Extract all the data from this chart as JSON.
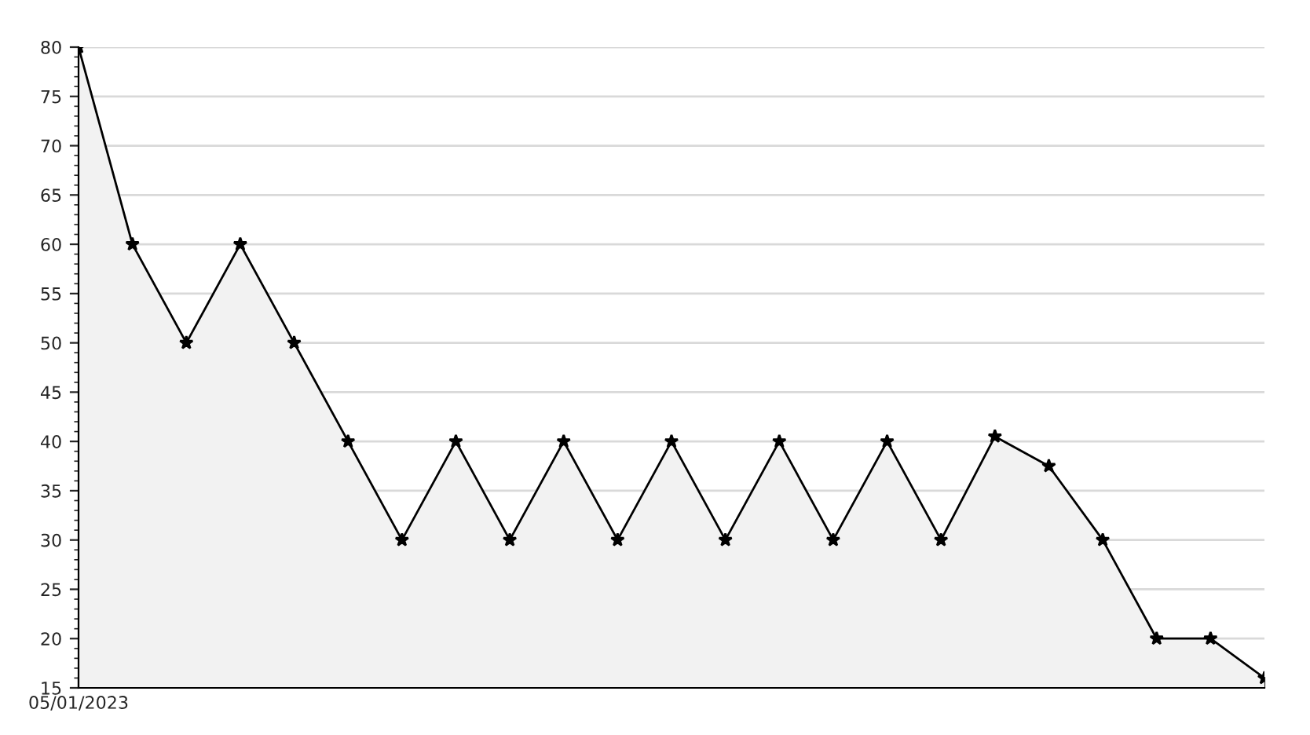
{
  "chart_data": {
    "type": "area",
    "categories": [
      "05/01/2023",
      null,
      null,
      null,
      null,
      null,
      null,
      null,
      null,
      null,
      null,
      null,
      null,
      null,
      null,
      null,
      null,
      null,
      null,
      null,
      null,
      null,
      null
    ],
    "series": [
      {
        "color": "#000000",
        "values": [
          80,
          60,
          50,
          60,
          50,
          40,
          30,
          40,
          30,
          40,
          30,
          40,
          30,
          40,
          30,
          40,
          30,
          40.5,
          37.5,
          30,
          20,
          20,
          16
        ]
      }
    ],
    "ylim": [
      15,
      80
    ],
    "yticks": [
      15,
      20,
      25,
      30,
      35,
      40,
      45,
      50,
      55,
      60,
      65,
      70,
      75,
      80
    ],
    "grid": "y",
    "marker": "star",
    "line_style": "solid",
    "legend": false
  }
}
